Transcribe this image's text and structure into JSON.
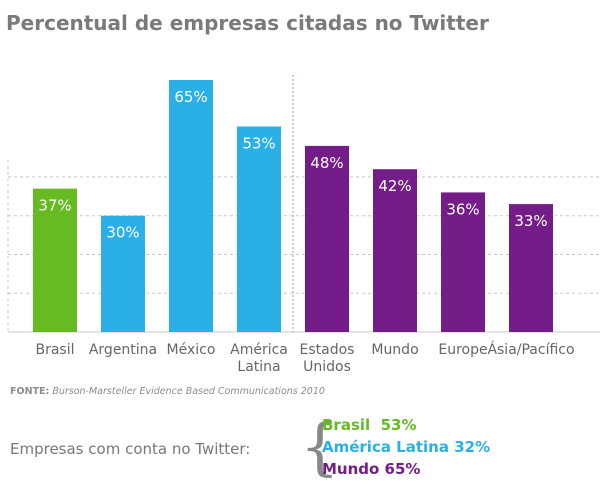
{
  "chart_data": {
    "type": "bar",
    "title": "Percentual de empresas citadas no Twitter",
    "categories": [
      "Brasil",
      "Argentina",
      "México",
      "América Latina",
      "Estados Unidos",
      "Mundo",
      "Europe",
      "Ásia/Pacífico"
    ],
    "category_lines": [
      [
        "Brasil"
      ],
      [
        "Argentina"
      ],
      [
        "México"
      ],
      [
        "América",
        "Latina"
      ],
      [
        "Estados",
        "Unidos"
      ],
      [
        "Mundo"
      ],
      [
        "Europe"
      ],
      [
        "Ásia/Pacífico"
      ]
    ],
    "values": [
      37,
      30,
      65,
      53,
      48,
      42,
      36,
      33
    ],
    "value_labels": [
      "37%",
      "30%",
      "65%",
      "53%",
      "48%",
      "42%",
      "36%",
      "33%"
    ],
    "colors": [
      "#66bb22",
      "#2ab0e6",
      "#2ab0e6",
      "#2ab0e6",
      "#741d89",
      "#741d89",
      "#741d89",
      "#741d89"
    ],
    "ylim": [
      0,
      70
    ],
    "grid": true,
    "grid_style": "dashed",
    "xlabel": "",
    "ylabel": ""
  },
  "source": {
    "label": "FONTE:",
    "text": "Burson-Marsteller Evidence Based Communications 2010"
  },
  "accounts": {
    "label": "Empresas com conta no Twitter:",
    "items": [
      {
        "text": "Brasil  53%",
        "color": "#66bb22"
      },
      {
        "text": "América Latina 32%",
        "color": "#2ab0e6"
      },
      {
        "text": "Mundo 65%",
        "color": "#741d89"
      }
    ]
  }
}
